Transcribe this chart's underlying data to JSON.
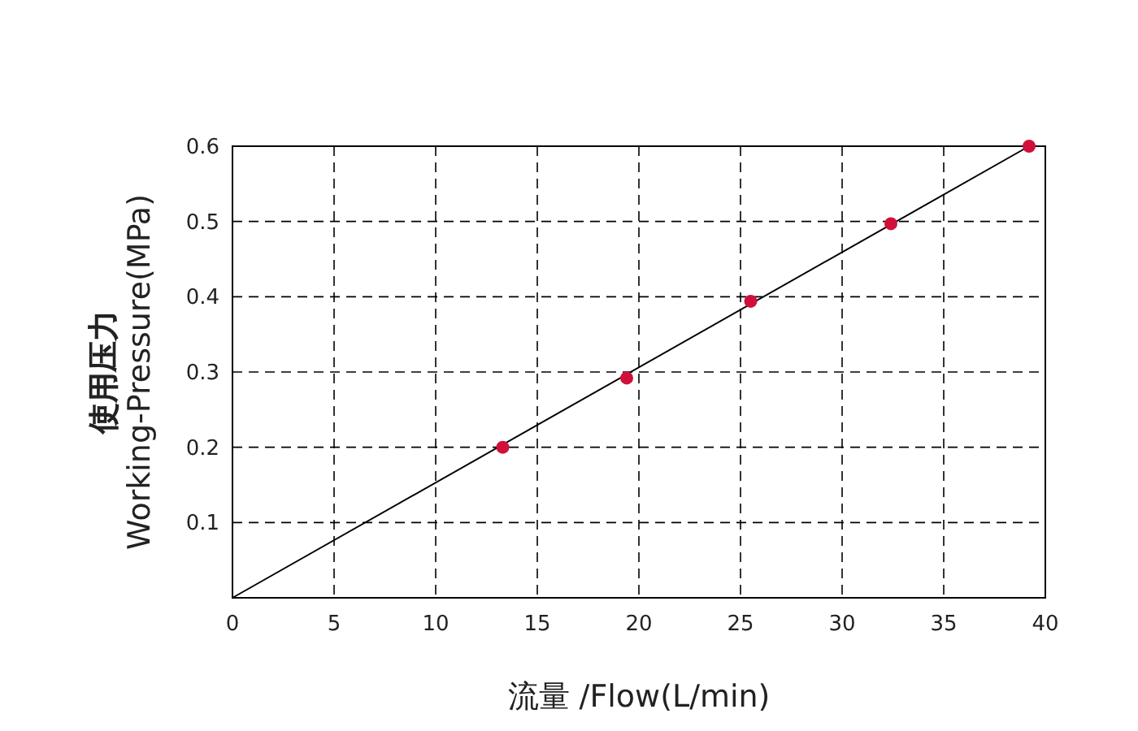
{
  "chart_data": {
    "type": "scatter",
    "xlabel": "流量 /Flow(L/min)",
    "ylabel": "使用压力\nWorking-Pressure(MPa)",
    "xlim": [
      0,
      40
    ],
    "xticks": [
      0,
      5,
      10,
      15,
      20,
      25,
      30,
      35,
      40
    ],
    "ylim": [
      0,
      0.6
    ],
    "yticks": [
      0.1,
      0.2,
      0.3,
      0.4,
      0.5,
      0.6
    ],
    "grid": true,
    "series": [
      {
        "type": "line",
        "x": [
          0,
          39.2
        ],
        "values": [
          0,
          0.6
        ],
        "color": "#000000",
        "line_style": "solid"
      },
      {
        "marker": "circle",
        "x": [
          13.3,
          19.4,
          25.5,
          32.4,
          39.2
        ],
        "values": [
          0.2,
          0.292,
          0.394,
          0.497,
          0.6
        ],
        "color": "#d0103a"
      }
    ]
  }
}
